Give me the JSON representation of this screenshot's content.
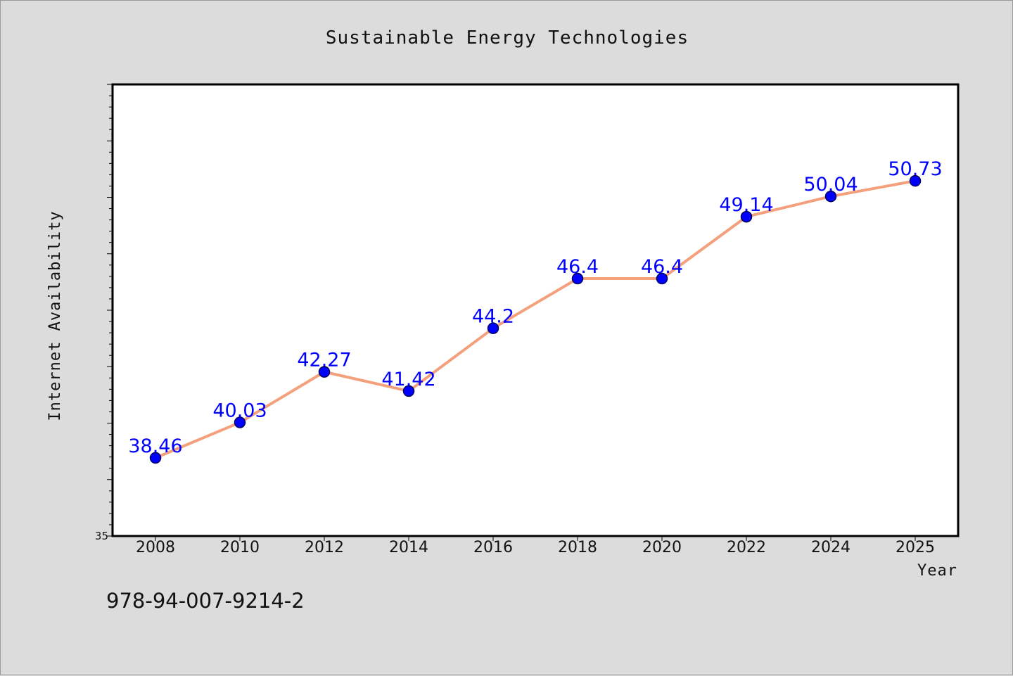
{
  "chart_data": {
    "type": "line",
    "title": "Sustainable Energy Technologies",
    "xlabel": "Year",
    "ylabel": "Internet Availability",
    "categories": [
      "2008",
      "2010",
      "2012",
      "2014",
      "2016",
      "2018",
      "2020",
      "2022",
      "2024",
      "2025"
    ],
    "series": [
      {
        "values": [
          38.46,
          40.03,
          42.27,
          41.42,
          44.2,
          46.4,
          46.4,
          49.14,
          50.04,
          50.73
        ]
      }
    ],
    "data_labels": [
      "38.46",
      "40.03",
      "42.27",
      "41.42",
      "44.2",
      "46.4",
      "46.4",
      "49.14",
      "50.04",
      "50.73"
    ],
    "ylim": [
      35,
      55
    ],
    "yticks_labeled": [
      "35"
    ],
    "grid": false,
    "legend": "none",
    "line_color": "#f4a07c",
    "marker_color": "#0000ff",
    "label_color": "#0000ff"
  },
  "footer": {
    "code": "978-94-007-9214-2"
  }
}
